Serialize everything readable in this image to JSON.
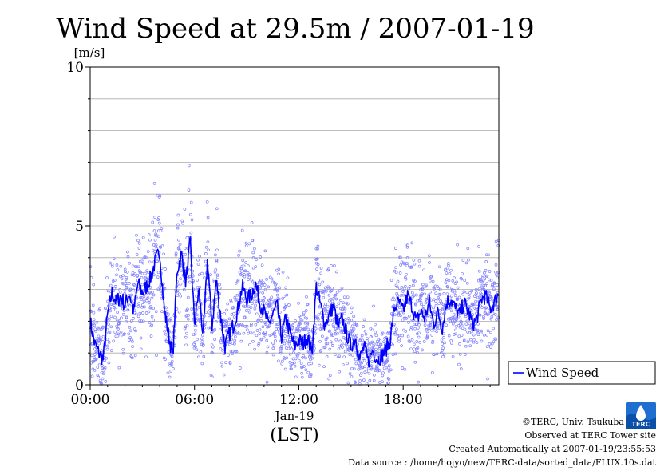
{
  "chart_data": {
    "type": "scatter",
    "title": "Wind Speed at 29.5m / 2007-01-19",
    "ylabel": "[m/s]",
    "xlabel": "(LST)",
    "date_label": "Jan-19",
    "ylim": [
      0,
      10
    ],
    "xlim_hours": [
      0,
      23.5
    ],
    "yticks": [
      0,
      5,
      10
    ],
    "ygrid": [
      1,
      2,
      3,
      4,
      5,
      6,
      7,
      8,
      9
    ],
    "xticks": [
      {
        "h": 0,
        "label": "00:00"
      },
      {
        "h": 6,
        "label": "06:00"
      },
      {
        "h": 12,
        "label": "12:00"
      },
      {
        "h": 18,
        "label": "18:00"
      }
    ],
    "grid": true,
    "legend_position": "right-bottom",
    "series": [
      {
        "name": "Wind Speed",
        "color": "#0000ff",
        "point_color": "#8080ff",
        "x_hours": [
          0.0,
          0.25,
          0.5,
          0.75,
          1.0,
          1.25,
          1.5,
          1.75,
          2.0,
          2.25,
          2.5,
          2.75,
          3.0,
          3.25,
          3.5,
          3.75,
          4.0,
          4.25,
          4.5,
          4.75,
          5.0,
          5.25,
          5.5,
          5.75,
          6.0,
          6.25,
          6.5,
          6.75,
          7.0,
          7.25,
          7.5,
          7.75,
          8.0,
          8.25,
          8.5,
          8.75,
          9.0,
          9.25,
          9.5,
          9.75,
          10.0,
          10.25,
          10.5,
          10.75,
          11.0,
          11.25,
          11.5,
          11.75,
          12.0,
          12.25,
          12.5,
          12.75,
          13.0,
          13.25,
          13.5,
          13.75,
          14.0,
          14.25,
          14.5,
          14.75,
          15.0,
          15.25,
          15.5,
          15.75,
          16.0,
          16.25,
          16.5,
          16.75,
          17.0,
          17.25,
          17.5,
          17.75,
          18.0,
          18.25,
          18.5,
          18.75,
          19.0,
          19.25,
          19.5,
          19.75,
          20.0,
          20.25,
          20.5,
          20.75,
          21.0,
          21.25,
          21.5,
          21.75,
          22.0,
          22.25,
          22.5,
          22.75,
          23.0,
          23.25,
          23.5
        ],
        "values": [
          2.0,
          1.3,
          1.0,
          0.8,
          2.2,
          2.9,
          2.6,
          2.8,
          2.5,
          2.9,
          2.3,
          3.2,
          2.9,
          3.1,
          3.4,
          3.9,
          4.2,
          2.4,
          1.6,
          0.9,
          3.6,
          4.1,
          3.2,
          4.5,
          1.9,
          3.0,
          1.5,
          4.0,
          1.8,
          3.3,
          2.2,
          1.2,
          1.6,
          1.9,
          2.4,
          3.1,
          2.7,
          2.8,
          3.2,
          2.6,
          2.3,
          1.9,
          2.2,
          2.5,
          1.5,
          2.1,
          1.6,
          1.2,
          1.4,
          1.3,
          1.5,
          1.0,
          3.1,
          2.5,
          1.9,
          2.2,
          2.5,
          1.8,
          2.1,
          1.6,
          1.2,
          1.5,
          0.8,
          1.2,
          0.7,
          1.1,
          0.8,
          0.9,
          1.1,
          1.4,
          2.4,
          2.6,
          2.3,
          2.8,
          2.5,
          2.0,
          2.3,
          2.1,
          2.6,
          1.9,
          2.3,
          1.8,
          2.6,
          2.7,
          2.4,
          2.2,
          2.6,
          2.3,
          1.9,
          2.1,
          2.7,
          2.8,
          2.4,
          2.6,
          2.9
        ]
      }
    ]
  },
  "footer": {
    "copyright": "©TERC, Univ. Tsukuba",
    "observed": "Observed at TERC Tower site",
    "created": "Created Automatically at 2007-01-19/23:55:53",
    "source": "Data source : /home/hojyo/new/TERC-data/sorted_data/FLUX.10s.dat"
  },
  "logo": {
    "text": "TERC"
  }
}
